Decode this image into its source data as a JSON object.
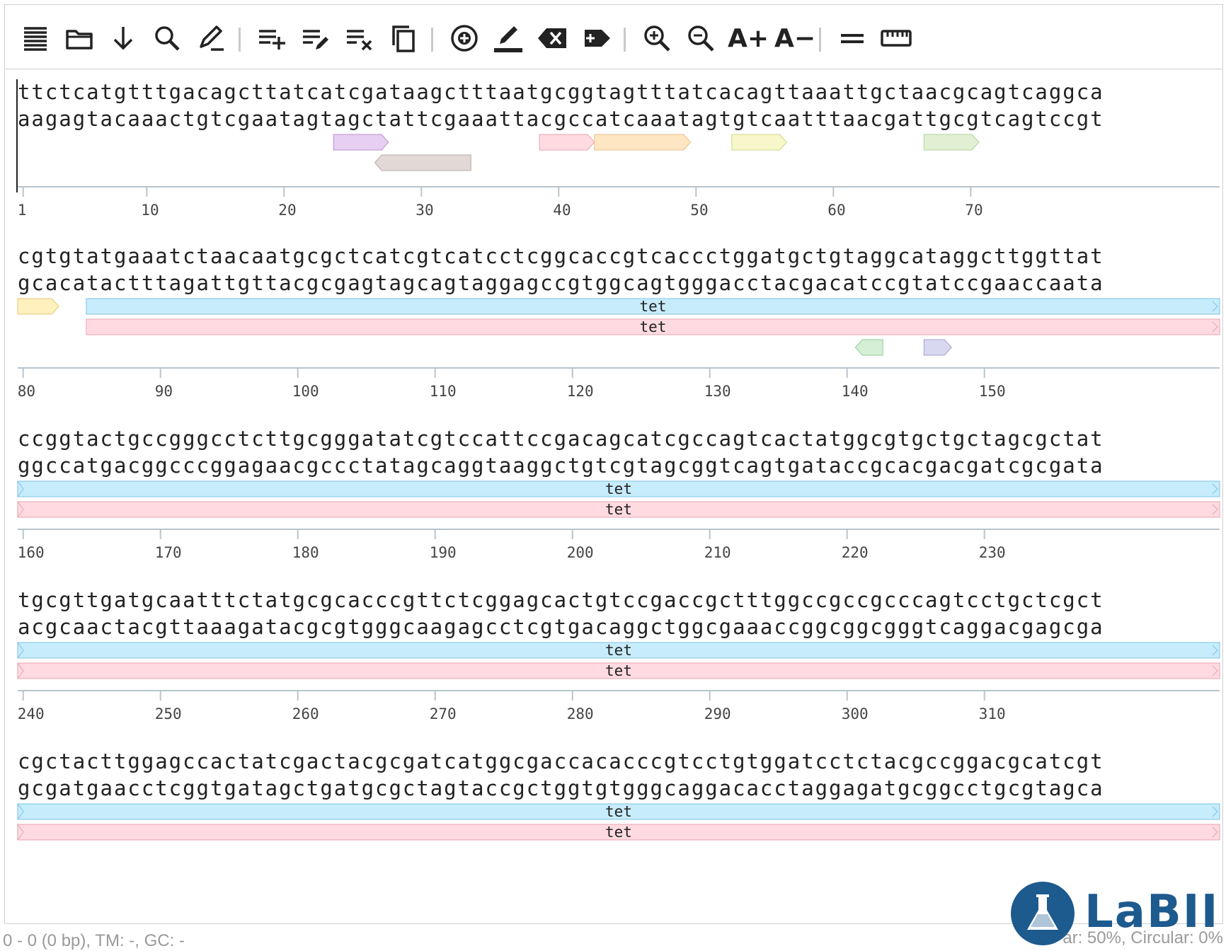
{
  "toolbar": {
    "buttons": [
      {
        "name": "sequence-view-icon",
        "x": 50
      },
      {
        "name": "open-folder-icon",
        "x": 118
      },
      {
        "name": "download-icon",
        "x": 186
      },
      {
        "name": "search-icon",
        "x": 254
      },
      {
        "name": "edit-icon",
        "x": 322
      },
      {
        "name": "add-feature-icon",
        "x": 420
      },
      {
        "name": "edit-feature-icon",
        "x": 488
      },
      {
        "name": "remove-feature-icon",
        "x": 556
      },
      {
        "name": "copy-icon",
        "x": 624
      },
      {
        "name": "circle-plus-icon",
        "x": 722
      },
      {
        "name": "highlight-pen-icon",
        "x": 790
      },
      {
        "name": "backspace-delete-icon",
        "x": 858
      },
      {
        "name": "add-label-icon",
        "x": 926
      },
      {
        "name": "zoom-in-icon",
        "x": 1024
      },
      {
        "name": "zoom-out-icon",
        "x": 1092
      },
      {
        "name": "font-increase-icon",
        "x": 1162,
        "text": "A+"
      },
      {
        "name": "font-decrease-icon",
        "x": 1230,
        "text": "A−"
      },
      {
        "name": "double-strand-icon",
        "x": 1328
      },
      {
        "name": "ruler-icon",
        "x": 1396
      }
    ]
  },
  "sequence": {
    "rows": [
      {
        "top": "ttctcatgtttgacagcttatcatcgataagctttaatgcggtagtttatcacagttaaattgctaacgcagtcaggca",
        "bottom": "aagagtacaaactgtcgaatagtagctattcgaaattacgccatcaaatagtgtcaatttaacgattgcgtcagtccgt",
        "ticks": [
          1,
          10,
          20,
          30,
          40,
          50,
          60,
          70
        ]
      },
      {
        "top": "cgtgtatgaaatctaacaatgcgctcatcgtcatcctcggcaccgtcaccctggatgctgtaggcataggcttggttat",
        "bottom": "gcacatactttagattgttacgcgagtagcagtaggagccgtggcagtgggacctacgacatccgtatccgaaccaata",
        "ticks": [
          80,
          90,
          100,
          110,
          120,
          130,
          140,
          150
        ]
      },
      {
        "top": "ccggtactgccgggcctcttgcgggatatcgtccattccgacagcatcgccagtcactatggcgtgctgctagcgctat",
        "bottom": "ggccatgacggcccggagaacgccctatagcaggtaaggctgtcgtagcggtcagtgataccgcacgacgatcgcgata",
        "ticks": [
          160,
          170,
          180,
          190,
          200,
          210,
          220,
          230
        ]
      },
      {
        "top": "tgcgttgatgcaatttctatgcgcacccgttctcggagcactgtccgaccgctttggccgccgcccagtcctgctcgct",
        "bottom": "acgcaactacgttaaagatacgcgtgggcaagagcctcgtgacaggctggcgaaaccggcggcgggtcaggacgagcga",
        "ticks": [
          240,
          250,
          260,
          270,
          280,
          290,
          300,
          310
        ]
      },
      {
        "top": "cgctacttggagccactatcgactacgcgatcatggcgaccacacccgtcctgtggatcctctacgccggacgcatcgt",
        "bottom": "gcgatgaacctcggtgatagctgatgcgctagtaccgctggtgtgggcaggacacctaggagatgcggcctgcgtagca",
        "ticks": []
      }
    ],
    "feature_label": "tet",
    "colors": {
      "tet_blue": "#c7ecfb",
      "tet_red": "#ffdbe1",
      "purple": "#e6cff0",
      "taupe": "#e2d9d7",
      "pink": "#ffdbe1",
      "orange": "#ffe6c2",
      "yellow": "#f7f7c9",
      "green": "#e1f0d3",
      "mint": "#d5efd6",
      "lavender": "#d8d8f0",
      "butter": "#fff0bd"
    }
  },
  "status": {
    "left": "0 - 0 (0 bp), TM: -, GC: -",
    "right": "ar: 50%, Circular: 0%"
  },
  "logo": {
    "text": "LaBII"
  }
}
